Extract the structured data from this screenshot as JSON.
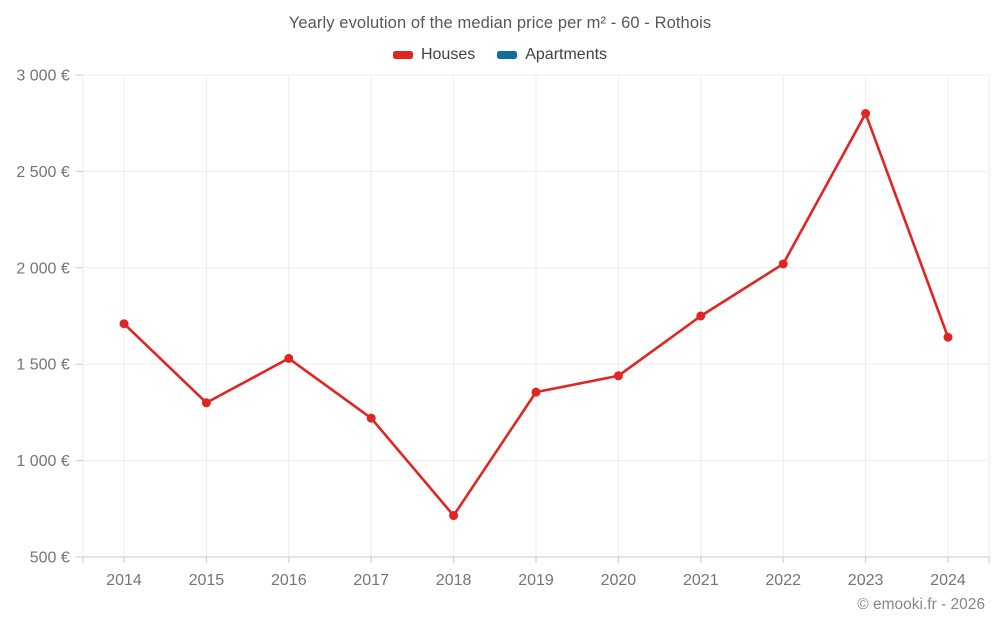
{
  "chart_data": {
    "type": "line",
    "title": "Yearly evolution of the median price per m² - 60 - Rothois",
    "categories": [
      "2014",
      "2015",
      "2016",
      "2017",
      "2018",
      "2019",
      "2020",
      "2021",
      "2022",
      "2023",
      "2024"
    ],
    "series": [
      {
        "name": "Houses",
        "color": "#e02522",
        "values": [
          1710,
          1300,
          1530,
          1220,
          715,
          1355,
          1440,
          1750,
          2020,
          2800,
          1640
        ]
      },
      {
        "name": "Apartments",
        "color": "#0f6f9e",
        "values": []
      }
    ],
    "xlabel": "",
    "ylabel": "",
    "ylim": [
      500,
      3000
    ],
    "ytick_step": 500,
    "ytick_suffix": " €",
    "grid": true,
    "legend_position": "top"
  },
  "footer": {
    "copyright": "© emooki.fr - 2026"
  }
}
